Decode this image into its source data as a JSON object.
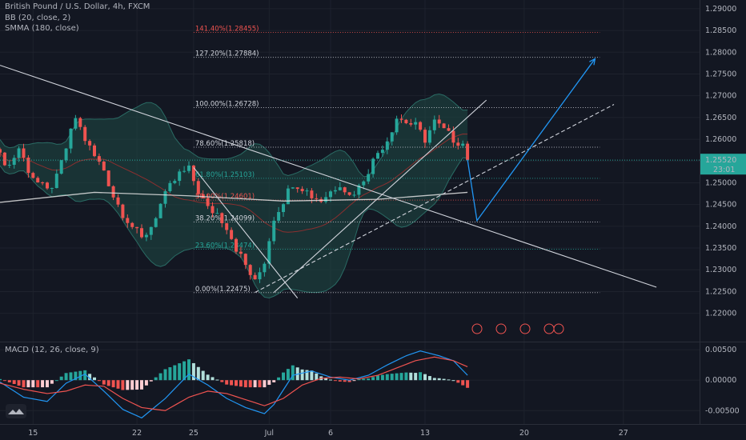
{
  "header": {
    "title": "British Pound / U.S. Dollar, 4h, FXCM",
    "indicator1": "BB (20, close, 2)",
    "indicator2": "SMMA (180, close)",
    "macd_title": "MACD (12, 26, close, 9)"
  },
  "price_tag": {
    "value": "1.25520",
    "timer": "23:01"
  },
  "colors": {
    "background": "#131722",
    "grid": "#1e222d",
    "up": "#26a69a",
    "down": "#ef5350",
    "bb_fill": "#1f4a45",
    "bb_line": "#2a6b64",
    "smma": "#e0e0e0",
    "trendline": "#d1d4dc",
    "projection": "#2196f3",
    "macd_line": "#2196f3",
    "signal_line": "#ef5350"
  },
  "chart_data": {
    "type": "candlestick",
    "symbol": "GBPUSD",
    "timeframe": "4h",
    "price_axis": {
      "labels": [
        "1.29000",
        "1.28500",
        "1.28000",
        "1.27500",
        "1.27000",
        "1.26500",
        "1.26000",
        "1.25500",
        "1.25000",
        "1.24500",
        "1.24000",
        "1.23500",
        "1.23000",
        "1.22500",
        "1.22000"
      ],
      "range": [
        1.2135,
        1.292
      ]
    },
    "time_axis": {
      "labels": [
        "15",
        "22",
        "25",
        "Jul",
        "6",
        "13",
        "20",
        "27"
      ],
      "label_bar_index": [
        7,
        29,
        41,
        57,
        70,
        90,
        111,
        132
      ]
    },
    "macd_axis": {
      "labels": [
        "0.00500",
        "0.00000",
        "-0.00500"
      ],
      "range": [
        -0.0072,
        0.0062
      ]
    },
    "fibonacci": [
      {
        "label": "141.40%(1.28455)",
        "price": 1.28455,
        "color": "#ef5350"
      },
      {
        "label": "127.20%(1.27884)",
        "price": 1.27884,
        "color": "#d1d4dc"
      },
      {
        "label": "100.00%(1.26728)",
        "price": 1.26728,
        "color": "#d1d4dc"
      },
      {
        "label": "78.60%(1.25818)",
        "price": 1.25818,
        "color": "#d1d4dc"
      },
      {
        "label": "61.80%(1.25103)",
        "price": 1.25103,
        "color": "#26a69a"
      },
      {
        "label": "50.00%(1.24601)",
        "price": 1.24601,
        "color": "#ef5350"
      },
      {
        "label": "38.20%(1.24099)",
        "price": 1.24099,
        "color": "#d1d4dc"
      },
      {
        "label": "23.60%(1.23474)",
        "price": 1.23474,
        "color": "#26a69a"
      },
      {
        "label": "0.00%(1.22475)",
        "price": 1.22475,
        "color": "#d1d4dc"
      }
    ],
    "close_path": [
      [
        0,
        1.256
      ],
      [
        2,
        1.254
      ],
      [
        4,
        1.258
      ],
      [
        6,
        1.253
      ],
      [
        8,
        1.25
      ],
      [
        10,
        1.248
      ],
      [
        12,
        1.251
      ],
      [
        14,
        1.258
      ],
      [
        16,
        1.265
      ],
      [
        18,
        1.26
      ],
      [
        20,
        1.256
      ],
      [
        22,
        1.253
      ],
      [
        24,
        1.247
      ],
      [
        26,
        1.243
      ],
      [
        28,
        1.24
      ],
      [
        30,
        1.237
      ],
      [
        32,
        1.24
      ],
      [
        34,
        1.245
      ],
      [
        36,
        1.249
      ],
      [
        38,
        1.252
      ],
      [
        40,
        1.253
      ],
      [
        42,
        1.248
      ],
      [
        44,
        1.244
      ],
      [
        46,
        1.243
      ],
      [
        48,
        1.24
      ],
      [
        50,
        1.235
      ],
      [
        52,
        1.231
      ],
      [
        54,
        1.227
      ],
      [
        56,
        1.232
      ],
      [
        58,
        1.242
      ],
      [
        60,
        1.246
      ],
      [
        62,
        1.25
      ],
      [
        64,
        1.249
      ],
      [
        66,
        1.247
      ],
      [
        68,
        1.246
      ],
      [
        70,
        1.248
      ],
      [
        72,
        1.25
      ],
      [
        74,
        1.247
      ],
      [
        76,
        1.249
      ],
      [
        78,
        1.253
      ],
      [
        80,
        1.257
      ],
      [
        82,
        1.26
      ],
      [
        84,
        1.265
      ],
      [
        86,
        1.264
      ],
      [
        88,
        1.263
      ],
      [
        90,
        1.26
      ],
      [
        92,
        1.264
      ],
      [
        94,
        1.262
      ],
      [
        96,
        1.26
      ],
      [
        98,
        1.259
      ],
      [
        99,
        1.2552
      ]
    ],
    "smma_points": [
      [
        0,
        1.2455
      ],
      [
        20,
        1.2478
      ],
      [
        40,
        1.247
      ],
      [
        60,
        1.2458
      ],
      [
        80,
        1.2462
      ],
      [
        99,
        1.2478
      ]
    ],
    "trendlines": [
      {
        "from": [
          0,
          1.277
        ],
        "to": [
          139,
          1.226
        ],
        "style": "solid"
      },
      {
        "from": [
          41,
          1.2535
        ],
        "to": [
          63,
          1.2235
        ],
        "style": "solid"
      },
      {
        "from": [
          58,
          1.2248
        ],
        "to": [
          103,
          1.269
        ],
        "style": "solid"
      },
      {
        "from": [
          54,
          1.2248
        ],
        "to": [
          130,
          1.268
        ],
        "style": "dashed"
      }
    ],
    "projection": [
      [
        99,
        1.2553
      ],
      [
        101,
        1.2413
      ],
      [
        126,
        1.2785
      ]
    ],
    "macd": {
      "hist_amp": 0.0028,
      "macd_line_points": [
        [
          0,
          -0.0003
        ],
        [
          5,
          -0.0028
        ],
        [
          10,
          -0.0035
        ],
        [
          14,
          -0.0005
        ],
        [
          18,
          0.001
        ],
        [
          22,
          -0.0018
        ],
        [
          26,
          -0.0048
        ],
        [
          30,
          -0.0062
        ],
        [
          35,
          -0.003
        ],
        [
          40,
          0.001
        ],
        [
          44,
          -0.0008
        ],
        [
          48,
          -0.003
        ],
        [
          52,
          -0.0045
        ],
        [
          56,
          -0.0055
        ],
        [
          58,
          -0.004
        ],
        [
          62,
          0.0008
        ],
        [
          66,
          0.0015
        ],
        [
          70,
          0.0005
        ],
        [
          74,
          0.0
        ],
        [
          78,
          0.0008
        ],
        [
          82,
          0.0025
        ],
        [
          86,
          0.004
        ],
        [
          89,
          0.0048
        ],
        [
          93,
          0.004
        ],
        [
          96,
          0.0032
        ],
        [
          99,
          0.0008
        ]
      ],
      "signal_line_points": [
        [
          0,
          -0.0005
        ],
        [
          5,
          -0.0015
        ],
        [
          10,
          -0.0022
        ],
        [
          14,
          -0.0018
        ],
        [
          18,
          -0.0008
        ],
        [
          22,
          -0.001
        ],
        [
          26,
          -0.003
        ],
        [
          30,
          -0.0045
        ],
        [
          35,
          -0.005
        ],
        [
          40,
          -0.0028
        ],
        [
          44,
          -0.0018
        ],
        [
          48,
          -0.0022
        ],
        [
          52,
          -0.0032
        ],
        [
          56,
          -0.0042
        ],
        [
          60,
          -0.003
        ],
        [
          64,
          -0.0008
        ],
        [
          68,
          0.0003
        ],
        [
          72,
          0.0005
        ],
        [
          76,
          0.0002
        ],
        [
          80,
          0.0008
        ],
        [
          84,
          0.002
        ],
        [
          88,
          0.0032
        ],
        [
          92,
          0.0038
        ],
        [
          96,
          0.0032
        ],
        [
          99,
          0.0022
        ]
      ]
    }
  }
}
